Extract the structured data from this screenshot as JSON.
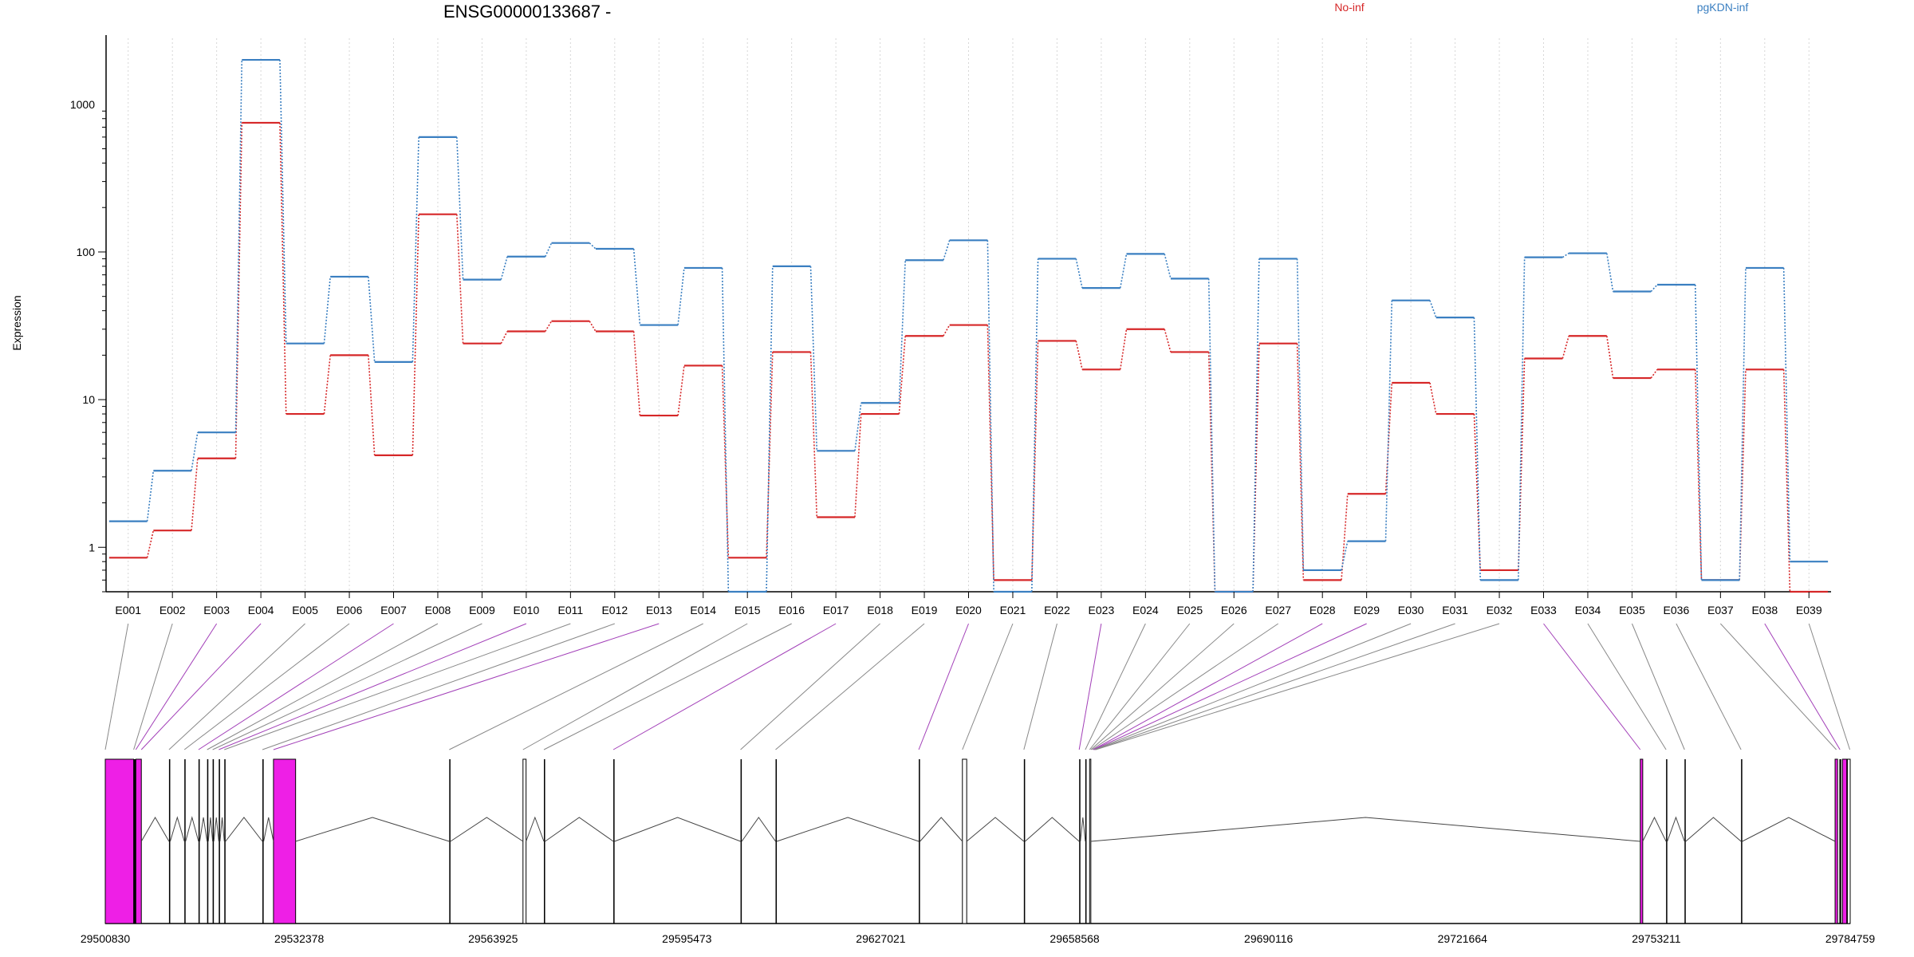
{
  "chart_data": {
    "type": "line",
    "title": "ENSG00000133687 -",
    "ylabel": "Expression",
    "xlabel": "",
    "yscale": "log",
    "ylim": [
      0.5,
      2800
    ],
    "grid": "vertical dotted",
    "yticks": [
      {
        "value": 1,
        "label": "1"
      },
      {
        "value": 10,
        "label": "10"
      },
      {
        "value": 100,
        "label": "100"
      },
      {
        "value": 1000,
        "label": "1000"
      }
    ],
    "categories": [
      "E001",
      "E002",
      "E003",
      "E004",
      "E005",
      "E006",
      "E007",
      "E008",
      "E009",
      "E010",
      "E011",
      "E012",
      "E013",
      "E014",
      "E015",
      "E016",
      "E017",
      "E018",
      "E019",
      "E020",
      "E021",
      "E022",
      "E023",
      "E024",
      "E025",
      "E026",
      "E027",
      "E028",
      "E029",
      "E030",
      "E031",
      "E032",
      "E033",
      "E034",
      "E035",
      "E036",
      "E037",
      "E038",
      "E039"
    ],
    "series": [
      {
        "name": "No-inf",
        "color": "#d62728",
        "values": [
          0.85,
          1.3,
          4,
          750,
          8,
          20,
          4.2,
          180,
          24,
          29,
          34,
          29,
          7.8,
          17,
          0.85,
          21,
          1.6,
          8,
          27,
          32,
          0.6,
          25,
          16,
          30,
          21,
          0.5,
          24,
          0.6,
          2.3,
          13,
          8,
          0.7,
          19,
          27,
          14,
          16,
          0.6,
          16,
          0.5
        ]
      },
      {
        "name": "pgKDN-inf",
        "color": "#3a7fc1",
        "values": [
          1.5,
          3.3,
          6,
          2000,
          24,
          68,
          18,
          600,
          65,
          93,
          115,
          105,
          32,
          78,
          0.5,
          80,
          4.5,
          9.5,
          88,
          120,
          0.5,
          90,
          57,
          97,
          66,
          0.5,
          90,
          0.7,
          1.1,
          47,
          36,
          0.6,
          92,
          98,
          54,
          60,
          0.6,
          78,
          0.8
        ]
      }
    ],
    "legend": [
      "No-inf",
      "pgKDN-inf"
    ],
    "legend_placement": "top"
  },
  "gene_model": {
    "coordinates": [
      "29500830",
      "29532378",
      "29563925",
      "29595473",
      "29627021",
      "29658568",
      "29690116",
      "29721664",
      "29753211",
      "29784759"
    ],
    "start": 29500830,
    "end": 29784759,
    "highlight_color": "#ee1fe6",
    "exon_edges": [
      {
        "a": 29500830,
        "b": 29505450,
        "fill": "magenta"
      },
      {
        "a": 29505450,
        "b": 29505800,
        "fill": "black"
      },
      {
        "a": 29505800,
        "b": 29506700,
        "fill": "magenta"
      },
      {
        "a": 29511200,
        "b": 29511400,
        "fill": "black"
      },
      {
        "a": 29513700,
        "b": 29513900,
        "fill": "black"
      },
      {
        "a": 29516000,
        "b": 29516200,
        "fill": "black"
      },
      {
        "a": 29517400,
        "b": 29517600,
        "fill": "black"
      },
      {
        "a": 29518300,
        "b": 29518500,
        "fill": "black"
      },
      {
        "a": 29519300,
        "b": 29519500,
        "fill": "black"
      },
      {
        "a": 29520200,
        "b": 29520400,
        "fill": "black"
      },
      {
        "a": 29526400,
        "b": 29526600,
        "fill": "black"
      },
      {
        "a": 29528200,
        "b": 29531800,
        "fill": "magenta"
      },
      {
        "a": 29556800,
        "b": 29557000,
        "fill": "black"
      },
      {
        "a": 29568800,
        "b": 29569300,
        "fill": "outline"
      },
      {
        "a": 29572200,
        "b": 29572400,
        "fill": "black"
      },
      {
        "a": 29583500,
        "b": 29583700,
        "fill": "black"
      },
      {
        "a": 29604200,
        "b": 29604400,
        "fill": "black"
      },
      {
        "a": 29609900,
        "b": 29610100,
        "fill": "black"
      },
      {
        "a": 29633200,
        "b": 29633400,
        "fill": "black"
      },
      {
        "a": 29640300,
        "b": 29641000,
        "fill": "outline"
      },
      {
        "a": 29650300,
        "b": 29650500,
        "fill": "black"
      },
      {
        "a": 29659300,
        "b": 29659500,
        "fill": "black"
      },
      {
        "a": 29660300,
        "b": 29660500,
        "fill": "black"
      },
      {
        "a": 29661000,
        "b": 29661200,
        "fill": "outline"
      },
      {
        "a": 29750600,
        "b": 29751000,
        "fill": "magenta"
      },
      {
        "a": 29754800,
        "b": 29755000,
        "fill": "black"
      },
      {
        "a": 29757800,
        "b": 29758000,
        "fill": "black"
      },
      {
        "a": 29767000,
        "b": 29767200,
        "fill": "black"
      },
      {
        "a": 29782300,
        "b": 29782700,
        "fill": "magenta"
      },
      {
        "a": 29783000,
        "b": 29783300,
        "fill": "black"
      },
      {
        "a": 29783500,
        "b": 29784200,
        "fill": "magenta"
      },
      {
        "a": 29784300,
        "b": 29784759,
        "fill": "outline"
      }
    ],
    "connector_targets": [
      29500830,
      29505450,
      29505800,
      29506700,
      29511200,
      29513700,
      29516000,
      29517400,
      29518300,
      29519300,
      29520200,
      29526400,
      29528200,
      29556800,
      29568800,
      29572200,
      29583500,
      29604200,
      29609900,
      29633200,
      29640300,
      29650300,
      29659300,
      29660300,
      29661000,
      29661200,
      29661400,
      29661600,
      29661700,
      29661800,
      29661900,
      29662000,
      29750600,
      29754800,
      29757800,
      29767000,
      29782500,
      29783100,
      29784700
    ],
    "connector_highlight": [
      false,
      false,
      true,
      true,
      false,
      false,
      true,
      false,
      false,
      true,
      false,
      false,
      true,
      false,
      false,
      false,
      true,
      false,
      false,
      true,
      false,
      false,
      true,
      false,
      false,
      false,
      false,
      true,
      true,
      false,
      false,
      false,
      true,
      false,
      false,
      false,
      false,
      true,
      false
    ]
  }
}
